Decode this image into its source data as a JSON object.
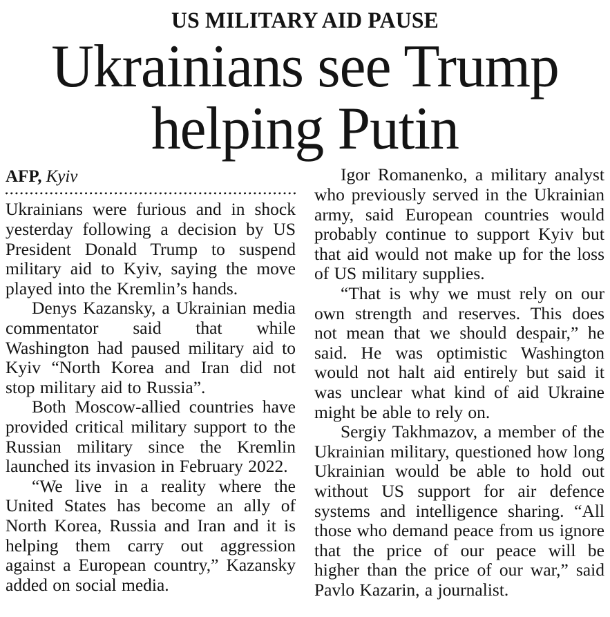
{
  "article": {
    "kicker": "US MILITARY AID PAUSE",
    "headline": "Ukrainians see Trump helping Putin",
    "headline_lines": [
      "Ukrainians see Trump",
      "helping Putin"
    ],
    "byline": {
      "agency": "AFP,",
      "location": "Kyiv"
    },
    "left_column": [
      "Ukrainians were furious and in shock yesterday following a decision by US President Donald Trump to suspend military aid to Kyiv, saying the move played into the Kremlin’s hands.",
      "Denys Kazansky, a Ukrainian media commentator said that while Washington had paused military aid to Kyiv “North Korea and Iran did not stop military aid to Russia”.",
      "Both Moscow-allied countries have provided critical military support to the Russian military since the Kremlin launched its invasion in February 2022.",
      "“We live in a reality where the United States has become an ally of North Korea, Russia and Iran and it is helping them carry out aggression against a European country,” Kazansky added on social media."
    ],
    "right_column": [
      "Igor Romanenko, a military analyst who previously served in the Ukrainian army, said European countries would probably continue to support Kyiv but that aid would not make up for the loss of US military supplies.",
      "“That is why we must rely on our own strength and reserves. This does not mean that we should despair,” he said. He was optimistic Washington would not halt aid entirely but said it was unclear what kind of aid Ukraine might be able to rely on.",
      "Sergiy Takhmazov, a member of the Ukrainian military, questioned how long Ukrainian would be able to hold out without US support for air defence systems and intelligence sharing. “All those who demand peace from us ignore that the price of our peace will be higher than the price of our war,” said Pavlo Kazarin, a journalist."
    ]
  },
  "colors": {
    "text": "#141414",
    "background": "#ffffff"
  }
}
